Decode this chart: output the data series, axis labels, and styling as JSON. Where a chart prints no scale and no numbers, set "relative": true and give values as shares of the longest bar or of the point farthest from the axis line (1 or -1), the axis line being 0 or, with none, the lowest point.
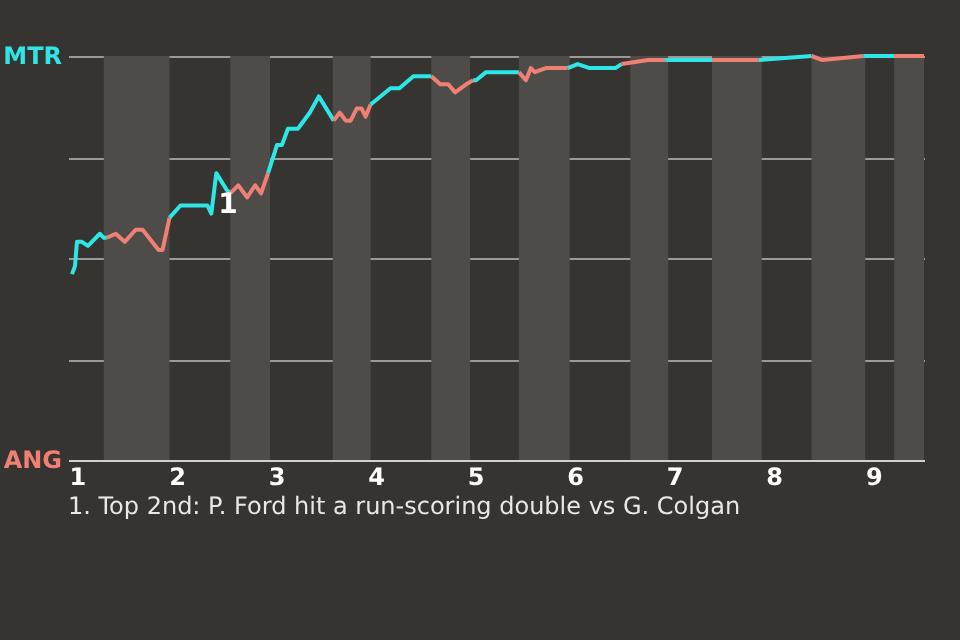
{
  "chart_data": {
    "type": "line",
    "series": [
      {
        "color": "#2ee6e6",
        "x": [
          0.95,
          0.98,
          1,
          1.05,
          1.11,
          1.23,
          1.27,
          1.3
        ],
        "values": [
          0.46,
          0.48,
          0.54,
          0.54,
          0.53,
          0.56,
          0.55,
          0.55
        ]
      },
      {
        "color": "#f07f74",
        "x": [
          1.3,
          1.39,
          1.48,
          1.59,
          1.66,
          1.82,
          1.86,
          1.93
        ],
        "values": [
          0.55,
          0.56,
          0.54,
          0.57,
          0.57,
          0.52,
          0.52,
          0.6
        ]
      },
      {
        "color": "#2ee6e6",
        "x": [
          1.93,
          2.04,
          2.31,
          2.35,
          2.4,
          2.5,
          2.54
        ],
        "values": [
          0.6,
          0.63,
          0.63,
          0.61,
          0.71,
          0.67,
          0.66
        ]
      },
      {
        "color": "#f07f74",
        "x": [
          2.54,
          2.62,
          2.71,
          2.79,
          2.85,
          2.92
        ],
        "values": [
          0.66,
          0.68,
          0.65,
          0.68,
          0.66,
          0.71
        ]
      },
      {
        "color": "#2ee6e6",
        "x": [
          2.92,
          3.01,
          3.06,
          3.12,
          3.22,
          3.34,
          3.43,
          3.58
        ],
        "values": [
          0.71,
          0.78,
          0.78,
          0.82,
          0.82,
          0.86,
          0.9,
          0.84
        ]
      },
      {
        "color": "#f07f74",
        "x": [
          3.58,
          3.64,
          3.7,
          3.75,
          3.81,
          3.86,
          3.9,
          3.95
        ],
        "values": [
          0.84,
          0.86,
          0.84,
          0.84,
          0.87,
          0.87,
          0.85,
          0.88
        ]
      },
      {
        "color": "#2ee6e6",
        "x": [
          3.95,
          4,
          4.15,
          4.24,
          4.38,
          4.56
        ],
        "values": [
          0.88,
          0.89,
          0.92,
          0.92,
          0.95,
          0.95
        ]
      },
      {
        "color": "#f07f74",
        "x": [
          4.56,
          4.65,
          4.73,
          4.8,
          4.91,
          4.98
        ],
        "values": [
          0.95,
          0.93,
          0.93,
          0.91,
          0.93,
          0.94
        ]
      },
      {
        "color": "#2ee6e6",
        "x": [
          4.98,
          5.01,
          5.11,
          5.33,
          5.37,
          5.44
        ],
        "values": [
          0.94,
          0.94,
          0.96,
          0.96,
          0.96,
          0.96
        ]
      },
      {
        "color": "#f07f74",
        "x": [
          5.44,
          5.51,
          5.56,
          5.6,
          5.71,
          5.93
        ],
        "values": [
          0.96,
          0.94,
          0.97,
          0.96,
          0.97,
          0.97
        ]
      },
      {
        "color": "#2ee6e6",
        "x": [
          5.93,
          6.03,
          6.15,
          6.41,
          6.47
        ],
        "values": [
          0.97,
          0.98,
          0.97,
          0.97,
          0.98
        ]
      },
      {
        "color": "#f07f74",
        "x": [
          6.47,
          6.74,
          6.91
        ],
        "values": [
          0.98,
          0.99,
          0.99
        ]
      },
      {
        "color": "#2ee6e6",
        "x": [
          6.91,
          7.38
        ],
        "values": [
          0.99,
          0.99
        ]
      },
      {
        "color": "#f07f74",
        "x": [
          7.38,
          7.56,
          7.68,
          7.85
        ],
        "values": [
          0.99,
          0.99,
          0.99,
          0.99
        ]
      },
      {
        "color": "#2ee6e6",
        "x": [
          7.85,
          8.38
        ],
        "values": [
          0.99,
          1
        ]
      },
      {
        "color": "#f07f74",
        "x": [
          8.38,
          8.49,
          8.9
        ],
        "values": [
          1,
          0.99,
          1
        ]
      },
      {
        "color": "#2ee6e6",
        "x": [
          8.9,
          9.21
        ],
        "values": [
          1,
          1
        ]
      },
      {
        "color": "#f07f74",
        "x": [
          9.21,
          9.51
        ],
        "values": [
          1,
          1
        ]
      }
    ],
    "xlim": [
      0.91,
      9.51
    ],
    "xticks": [
      1,
      2,
      3,
      4,
      5,
      6,
      7,
      8,
      9
    ],
    "relative": true,
    "grid": "y",
    "bands": [
      {
        "axis": "x",
        "from": 1.27,
        "to": 1.93,
        "color": "#4e4c49"
      },
      {
        "axis": "x",
        "from": 2.54,
        "to": 2.94,
        "color": "#4e4c49"
      },
      {
        "axis": "x",
        "from": 3.57,
        "to": 3.95,
        "color": "#4e4c49"
      },
      {
        "axis": "x",
        "from": 4.56,
        "to": 4.95,
        "color": "#4e4c49"
      },
      {
        "axis": "x",
        "from": 5.44,
        "to": 5.95,
        "color": "#4e4c49"
      },
      {
        "axis": "x",
        "from": 6.56,
        "to": 6.94,
        "color": "#4e4c49"
      },
      {
        "axis": "x",
        "from": 7.38,
        "to": 7.88,
        "color": "#4e4c49"
      },
      {
        "axis": "x",
        "from": 8.38,
        "to": 8.92,
        "color": "#4e4c49"
      },
      {
        "axis": "x",
        "from": 9.21,
        "to": 9.51,
        "color": "#4e4c49"
      }
    ],
    "annotations": [
      {
        "text": "1",
        "x": 2.42,
        "y": 0.63
      },
      "MTR",
      "ANG",
      "1. Top 2nd: P. Ford hit a run-scoring double vs G. Colgan"
    ]
  }
}
